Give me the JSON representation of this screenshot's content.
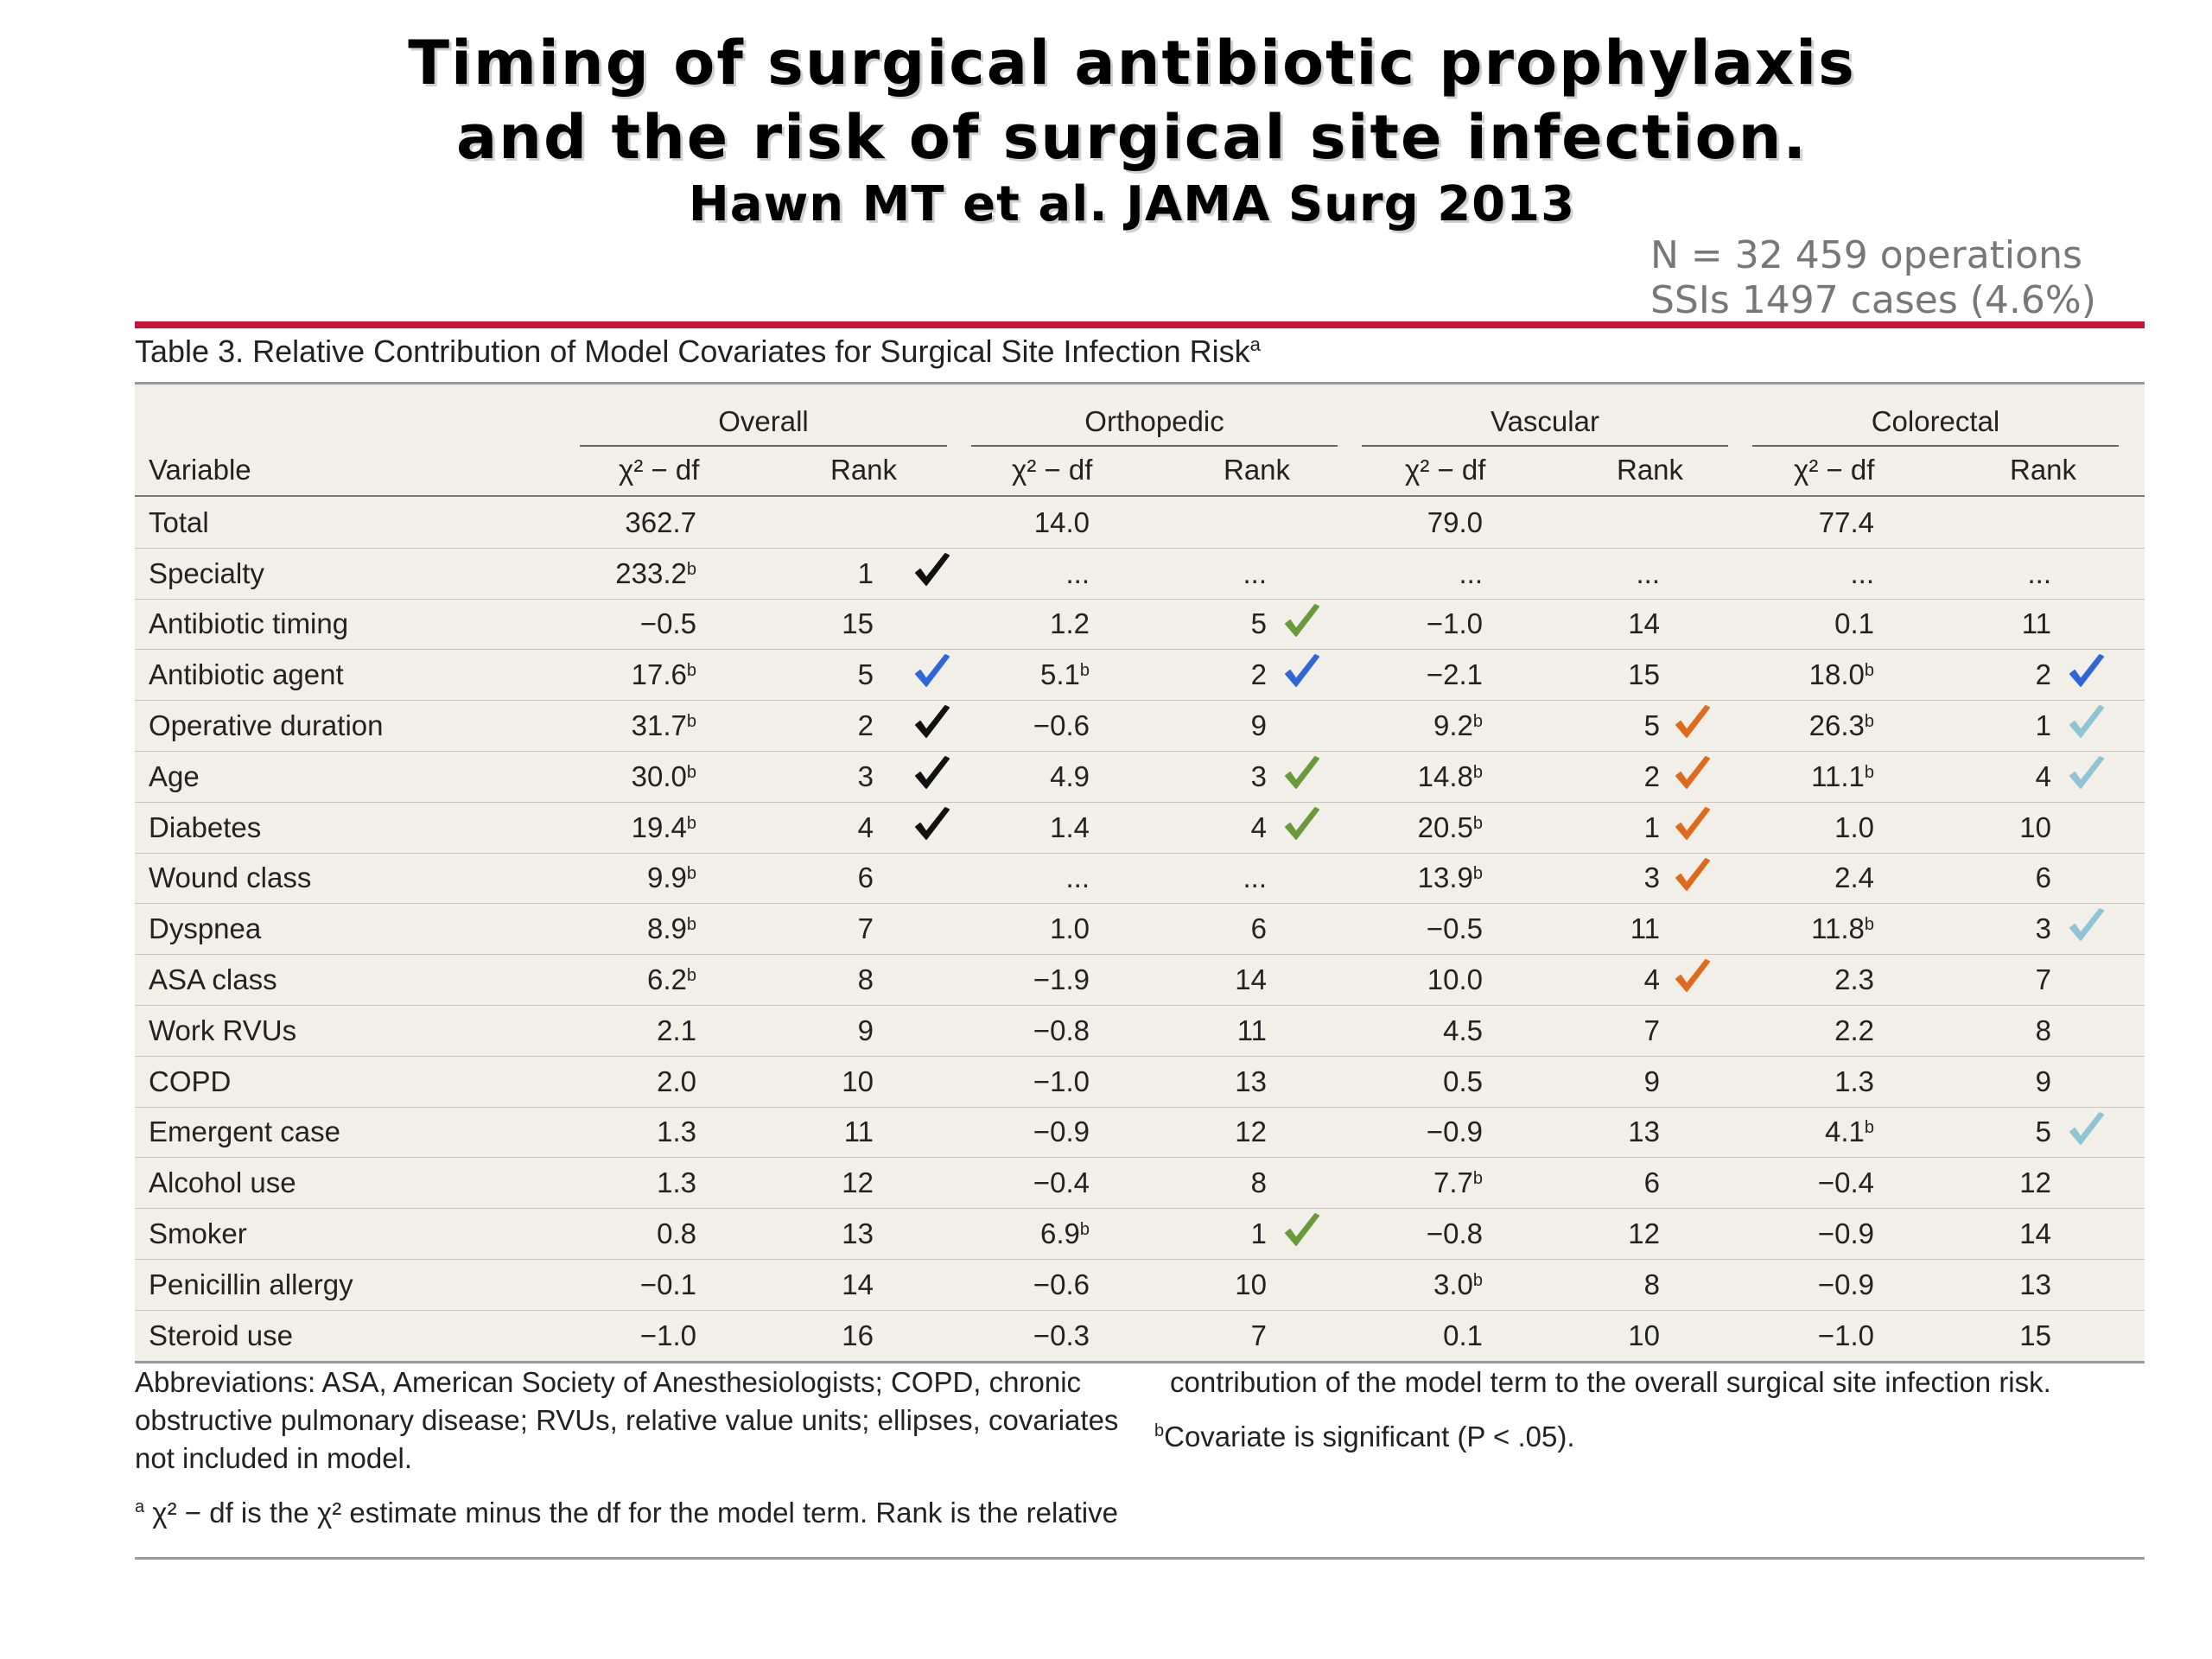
{
  "slide": {
    "title_line1": "Timing of surgical antibiotic prophylaxis",
    "title_line2": "and the risk of surgical site infection.",
    "citation": "Hawn MT et al. JAMA Surg 2013",
    "stat_operations": "N = 32 459 operations",
    "stat_ssi": "SSIs 1497 cases (4.6%)"
  },
  "table": {
    "caption": "Table 3. Relative Contribution of Model Covariates for Surgical Site Infection Risk",
    "caption_sup": "a",
    "groups": [
      "Overall",
      "Orthopedic",
      "Vascular",
      "Colorectal"
    ],
    "col_variable": "Variable",
    "col_chi": "χ² − df",
    "col_rank": "Rank",
    "rows": [
      {
        "name": "Total",
        "cells": [
          [
            "362.7",
            ""
          ],
          [
            "",
            ""
          ],
          [
            "14.0",
            ""
          ],
          [
            "",
            ""
          ],
          [
            "79.0",
            ""
          ],
          [
            "",
            ""
          ],
          [
            "77.4",
            ""
          ],
          [
            "",
            ""
          ]
        ],
        "checks": [
          "",
          "",
          "",
          ""
        ]
      },
      {
        "name": "Specialty",
        "cells": [
          [
            "233.2",
            "b"
          ],
          [
            "1",
            ""
          ],
          [
            "...",
            ""
          ],
          [
            "...",
            ""
          ],
          [
            "...",
            ""
          ],
          [
            "...",
            ""
          ],
          [
            "...",
            ""
          ],
          [
            "...",
            ""
          ]
        ],
        "checks": [
          "black",
          "",
          "",
          ""
        ]
      },
      {
        "name": "Antibiotic timing",
        "cells": [
          [
            "−0.5",
            ""
          ],
          [
            "15",
            ""
          ],
          [
            "1.2",
            ""
          ],
          [
            "5",
            ""
          ],
          [
            "−1.0",
            ""
          ],
          [
            "14",
            ""
          ],
          [
            "0.1",
            ""
          ],
          [
            "11",
            ""
          ]
        ],
        "checks": [
          "",
          "green",
          "",
          ""
        ]
      },
      {
        "name": "Antibiotic agent",
        "cells": [
          [
            "17.6",
            "b"
          ],
          [
            "5",
            ""
          ],
          [
            "5.1",
            "b"
          ],
          [
            "2",
            ""
          ],
          [
            "−2.1",
            ""
          ],
          [
            "15",
            ""
          ],
          [
            "18.0",
            "b"
          ],
          [
            "2",
            ""
          ]
        ],
        "checks": [
          "blue",
          "blue",
          "",
          "blue"
        ]
      },
      {
        "name": "Operative duration",
        "cells": [
          [
            "31.7",
            "b"
          ],
          [
            "2",
            ""
          ],
          [
            "−0.6",
            ""
          ],
          [
            "9",
            ""
          ],
          [
            "9.2",
            "b"
          ],
          [
            "5",
            ""
          ],
          [
            "26.3",
            "b"
          ],
          [
            "1",
            ""
          ]
        ],
        "checks": [
          "black",
          "",
          "orange",
          "lightblue"
        ]
      },
      {
        "name": "Age",
        "cells": [
          [
            "30.0",
            "b"
          ],
          [
            "3",
            ""
          ],
          [
            "4.9",
            ""
          ],
          [
            "3",
            ""
          ],
          [
            "14.8",
            "b"
          ],
          [
            "2",
            ""
          ],
          [
            "11.1",
            "b"
          ],
          [
            "4",
            ""
          ]
        ],
        "checks": [
          "black",
          "green",
          "orange",
          "lightblue"
        ]
      },
      {
        "name": "Diabetes",
        "cells": [
          [
            "19.4",
            "b"
          ],
          [
            "4",
            ""
          ],
          [
            "1.4",
            ""
          ],
          [
            "4",
            ""
          ],
          [
            "20.5",
            "b"
          ],
          [
            "1",
            ""
          ],
          [
            "1.0",
            ""
          ],
          [
            "10",
            ""
          ]
        ],
        "checks": [
          "black",
          "green",
          "orange",
          ""
        ]
      },
      {
        "name": "Wound class",
        "cells": [
          [
            "9.9",
            "b"
          ],
          [
            "6",
            ""
          ],
          [
            "...",
            ""
          ],
          [
            "...",
            ""
          ],
          [
            "13.9",
            "b"
          ],
          [
            "3",
            ""
          ],
          [
            "2.4",
            ""
          ],
          [
            "6",
            ""
          ]
        ],
        "checks": [
          "",
          "",
          "orange",
          ""
        ]
      },
      {
        "name": "Dyspnea",
        "cells": [
          [
            "8.9",
            "b"
          ],
          [
            "7",
            ""
          ],
          [
            "1.0",
            ""
          ],
          [
            "6",
            ""
          ],
          [
            "−0.5",
            ""
          ],
          [
            "11",
            ""
          ],
          [
            "11.8",
            "b"
          ],
          [
            "3",
            ""
          ]
        ],
        "checks": [
          "",
          "",
          "",
          "lightblue"
        ]
      },
      {
        "name": "ASA class",
        "cells": [
          [
            "6.2",
            "b"
          ],
          [
            "8",
            ""
          ],
          [
            "−1.9",
            ""
          ],
          [
            "14",
            ""
          ],
          [
            "10.0",
            ""
          ],
          [
            "4",
            ""
          ],
          [
            "2.3",
            ""
          ],
          [
            "7",
            ""
          ]
        ],
        "checks": [
          "",
          "",
          "orange",
          ""
        ]
      },
      {
        "name": "Work RVUs",
        "cells": [
          [
            "2.1",
            ""
          ],
          [
            "9",
            ""
          ],
          [
            "−0.8",
            ""
          ],
          [
            "11",
            ""
          ],
          [
            "4.5",
            ""
          ],
          [
            "7",
            ""
          ],
          [
            "2.2",
            ""
          ],
          [
            "8",
            ""
          ]
        ],
        "checks": [
          "",
          "",
          "",
          ""
        ]
      },
      {
        "name": "COPD",
        "cells": [
          [
            "2.0",
            ""
          ],
          [
            "10",
            ""
          ],
          [
            "−1.0",
            ""
          ],
          [
            "13",
            ""
          ],
          [
            "0.5",
            ""
          ],
          [
            "9",
            ""
          ],
          [
            "1.3",
            ""
          ],
          [
            "9",
            ""
          ]
        ],
        "checks": [
          "",
          "",
          "",
          ""
        ]
      },
      {
        "name": "Emergent case",
        "cells": [
          [
            "1.3",
            ""
          ],
          [
            "11",
            ""
          ],
          [
            "−0.9",
            ""
          ],
          [
            "12",
            ""
          ],
          [
            "−0.9",
            ""
          ],
          [
            "13",
            ""
          ],
          [
            "4.1",
            "b"
          ],
          [
            "5",
            ""
          ]
        ],
        "checks": [
          "",
          "",
          "",
          "lightblue"
        ]
      },
      {
        "name": "Alcohol use",
        "cells": [
          [
            "1.3",
            ""
          ],
          [
            "12",
            ""
          ],
          [
            "−0.4",
            ""
          ],
          [
            "8",
            ""
          ],
          [
            "7.7",
            "b"
          ],
          [
            "6",
            ""
          ],
          [
            "−0.4",
            ""
          ],
          [
            "12",
            ""
          ]
        ],
        "checks": [
          "",
          "",
          "",
          ""
        ]
      },
      {
        "name": "Smoker",
        "cells": [
          [
            "0.8",
            ""
          ],
          [
            "13",
            ""
          ],
          [
            "6.9",
            "b"
          ],
          [
            "1",
            ""
          ],
          [
            "−0.8",
            ""
          ],
          [
            "12",
            ""
          ],
          [
            "−0.9",
            ""
          ],
          [
            "14",
            ""
          ]
        ],
        "checks": [
          "",
          "green",
          "",
          ""
        ]
      },
      {
        "name": "Penicillin allergy",
        "cells": [
          [
            "−0.1",
            ""
          ],
          [
            "14",
            ""
          ],
          [
            "−0.6",
            ""
          ],
          [
            "10",
            ""
          ],
          [
            "3.0",
            "b"
          ],
          [
            "8",
            ""
          ],
          [
            "−0.9",
            ""
          ],
          [
            "13",
            ""
          ]
        ],
        "checks": [
          "",
          "",
          "",
          ""
        ]
      },
      {
        "name": "Steroid use",
        "cells": [
          [
            "−1.0",
            ""
          ],
          [
            "16",
            ""
          ],
          [
            "−0.3",
            ""
          ],
          [
            "7",
            ""
          ],
          [
            "0.1",
            ""
          ],
          [
            "10",
            ""
          ],
          [
            "−1.0",
            ""
          ],
          [
            "15",
            ""
          ]
        ],
        "checks": [
          "",
          "",
          "",
          ""
        ]
      }
    ],
    "check_colors": {
      "black": "#111111",
      "green": "#6a9a3a",
      "blue": "#2f66d8",
      "orange": "#e06a1c",
      "lightblue": "#8ec4d4"
    }
  },
  "footnotes": {
    "abbrev_1": "Abbreviations: ASA, American Society of Anesthesiologists; COPD, chronic",
    "abbrev_2": "obstructive pulmonary disease; RVUs, relative value units; ellipses, covariates",
    "abbrev_3": "not included in model.",
    "note_a_mark": "a",
    "note_a_text": "χ² − df is the χ² estimate minus the df for the model term. Rank is the relative",
    "note_a_cont": "contribution of the model term to the overall surgical site infection risk.",
    "note_b_mark": "b",
    "note_b_text": "Covariate is significant (P < .05)."
  }
}
